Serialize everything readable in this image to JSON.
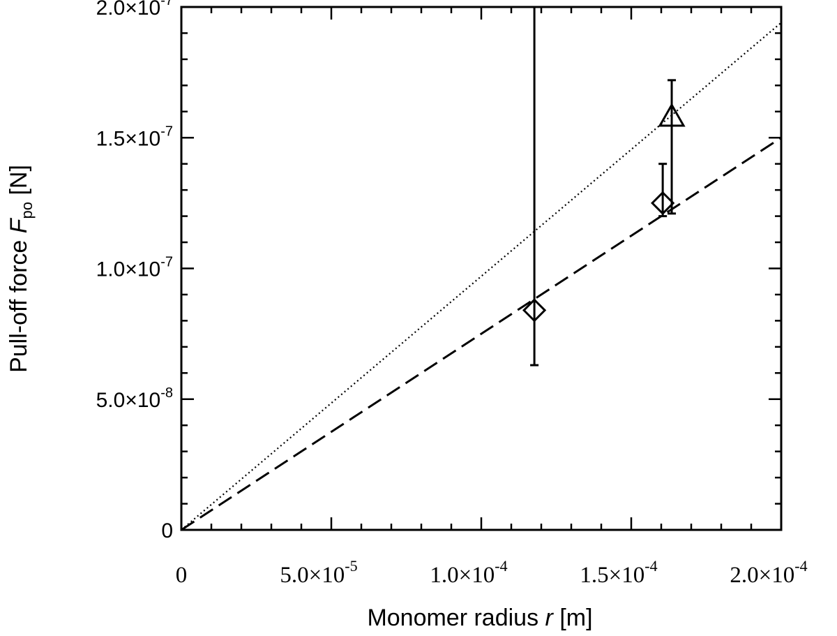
{
  "chart_data": {
    "type": "scatter",
    "xlabel": {
      "pre": "Monomer radius ",
      "var": "r",
      "post": " [m]"
    },
    "ylabel": {
      "pre": "Pull-off force ",
      "var": "F",
      "sub": "po",
      "post": " [N]"
    },
    "xlim": [
      0,
      0.0002
    ],
    "ylim": [
      0,
      2e-07
    ],
    "x_ticks": [
      {
        "value": 0,
        "mantissa": "0",
        "exp": ""
      },
      {
        "value": 5e-05,
        "mantissa": "5.0×10",
        "exp": "-5"
      },
      {
        "value": 0.0001,
        "mantissa": "1.0×10",
        "exp": "-4"
      },
      {
        "value": 0.00015,
        "mantissa": "1.5×10",
        "exp": "-4"
      },
      {
        "value": 0.0002,
        "mantissa": "2.0×10",
        "exp": "-4"
      }
    ],
    "y_ticks": [
      {
        "value": 0,
        "mantissa": "0",
        "exp": ""
      },
      {
        "value": 5e-08,
        "mantissa": "5.0×10",
        "exp": "-8"
      },
      {
        "value": 1e-07,
        "mantissa": "1.0×10",
        "exp": "-7"
      },
      {
        "value": 1.5e-07,
        "mantissa": "1.5×10",
        "exp": "-7"
      },
      {
        "value": 2e-07,
        "mantissa": "2.0×10",
        "exp": "-7"
      }
    ],
    "points": [
      {
        "marker": "diamond",
        "x": 0.0001177,
        "y": 8.4e-08,
        "err_low": 6.3e-08,
        "err_high": 2e-07
      },
      {
        "marker": "diamond",
        "x": 0.0001605,
        "y": 1.25e-07,
        "err_low": 1.2e-07,
        "err_high": 1.4e-07
      },
      {
        "marker": "triangle",
        "x": 0.0001635,
        "y": 1.58e-07,
        "err_low": 1.21e-07,
        "err_high": 1.72e-07
      }
    ],
    "lines": [
      {
        "style": "dashed",
        "x": [
          0,
          0.0002
        ],
        "y": [
          0,
          1.5e-07
        ]
      },
      {
        "style": "dotted",
        "x": [
          0,
          0.0002
        ],
        "y": [
          0,
          1.94e-07
        ]
      }
    ],
    "grid": false,
    "legend": "none"
  }
}
